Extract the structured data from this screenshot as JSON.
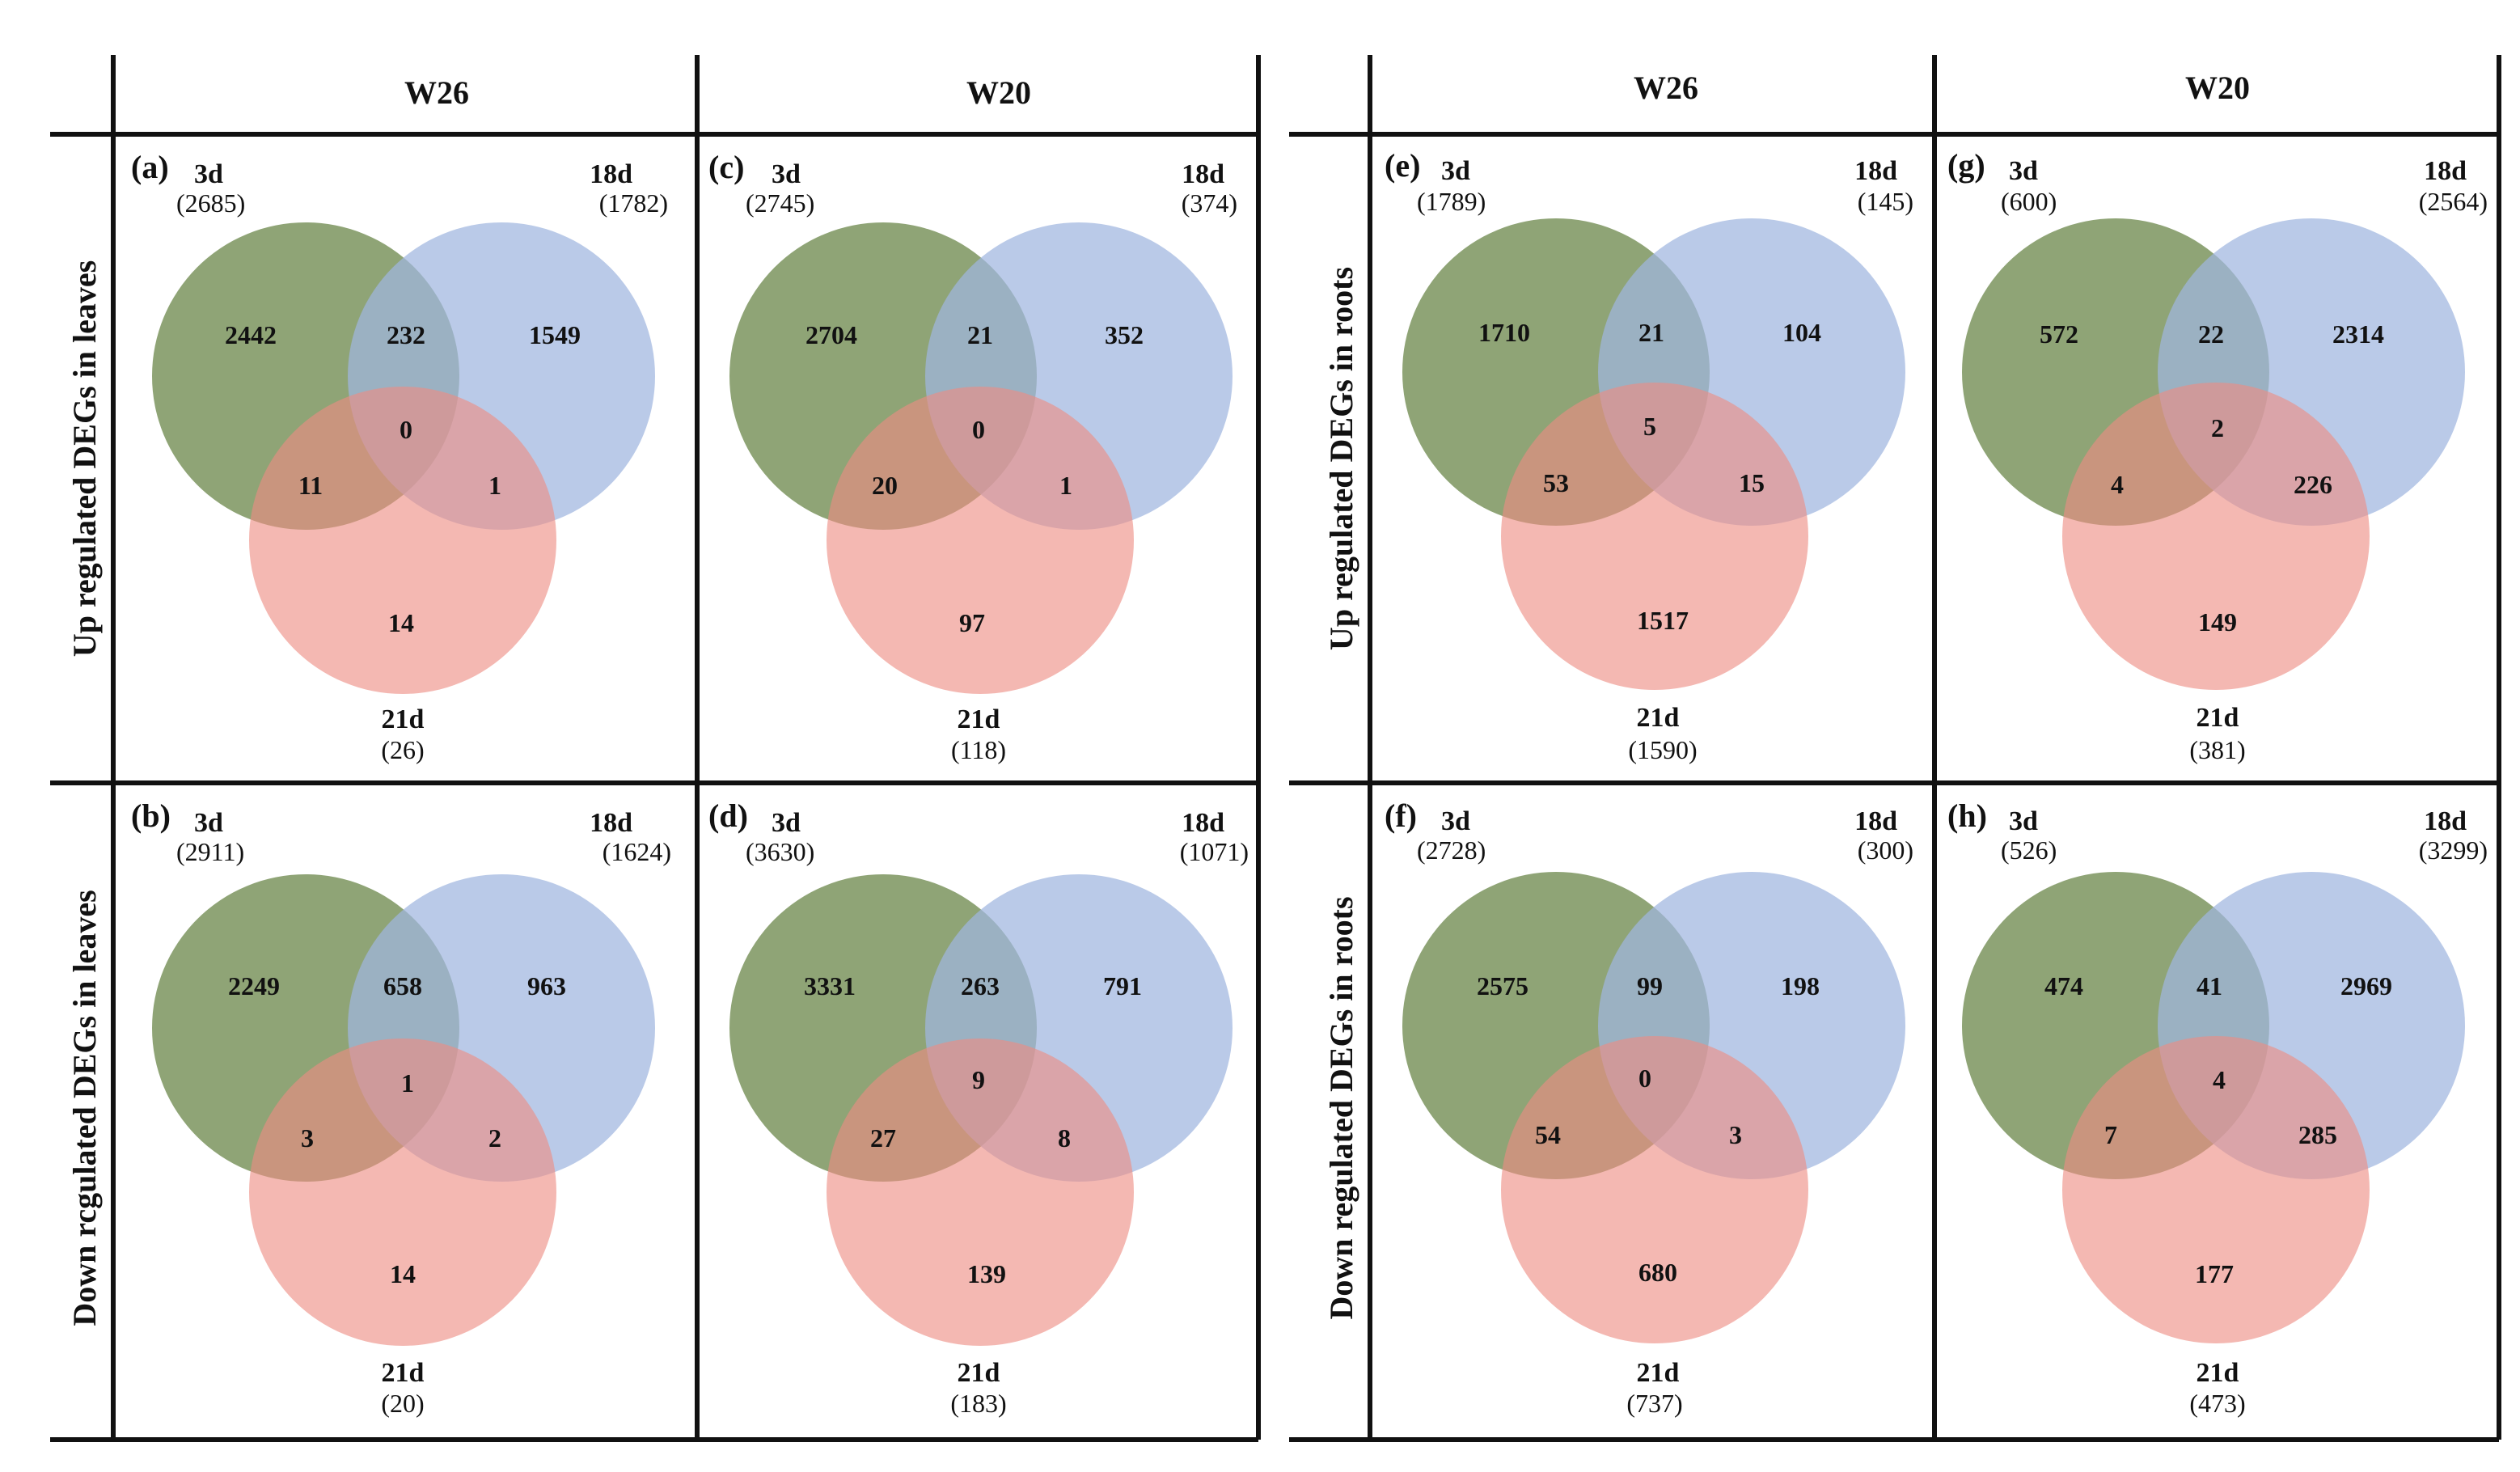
{
  "colors": {
    "set_3d": "#6f8a4f",
    "set_18d": "#9fb6df",
    "set_21d": "#ee8d82",
    "grid": "#111111"
  },
  "left_group": {
    "columns": [
      "W26",
      "W20"
    ],
    "rows": [
      "Up regulated DEGs in leaves",
      "Down rcgulated DEGs in leaves"
    ]
  },
  "right_group": {
    "columns": [
      "W26",
      "W20"
    ],
    "rows": [
      "Up regulated DEGs in roots",
      "Down regulated DEGs in roots"
    ]
  },
  "panels": [
    {
      "id": "a",
      "label": "(a)",
      "sets": {
        "a": {
          "name": "3d",
          "total": "(2685)"
        },
        "b": {
          "name": "18d",
          "total": "(1782)"
        },
        "c": {
          "name": "21d",
          "total": "(26)"
        }
      },
      "regions": {
        "a_only": "2442",
        "ab": "232",
        "b_only": "1549",
        "abc": "0",
        "ac": "11",
        "bc": "1",
        "c_only": "14"
      }
    },
    {
      "id": "b",
      "label": "(b)",
      "sets": {
        "a": {
          "name": "3d",
          "total": "(2911)"
        },
        "b": {
          "name": "18d",
          "total": "(1624)"
        },
        "c": {
          "name": "21d",
          "total": "(20)"
        }
      },
      "regions": {
        "a_only": "2249",
        "ab": "658",
        "b_only": "963",
        "abc": "1",
        "ac": "3",
        "bc": "2",
        "c_only": "14"
      }
    },
    {
      "id": "c",
      "label": "(c)",
      "sets": {
        "a": {
          "name": "3d",
          "total": "(2745)"
        },
        "b": {
          "name": "18d",
          "total": "(374)"
        },
        "c": {
          "name": "21d",
          "total": "(118)"
        }
      },
      "regions": {
        "a_only": "2704",
        "ab": "21",
        "b_only": "352",
        "abc": "0",
        "ac": "20",
        "bc": "1",
        "c_only": "97"
      }
    },
    {
      "id": "d",
      "label": "(d)",
      "sets": {
        "a": {
          "name": "3d",
          "total": "(3630)"
        },
        "b": {
          "name": "18d",
          "total": "(1071)"
        },
        "c": {
          "name": "21d",
          "total": "(183)"
        }
      },
      "regions": {
        "a_only": "3331",
        "ab": "263",
        "b_only": "791",
        "abc": "9",
        "ac": "27",
        "bc": "8",
        "c_only": "139"
      }
    },
    {
      "id": "e",
      "label": "(e)",
      "sets": {
        "a": {
          "name": "3d",
          "total": "(1789)"
        },
        "b": {
          "name": "18d",
          "total": "(145)"
        },
        "c": {
          "name": "21d",
          "total": "(1590)"
        }
      },
      "regions": {
        "a_only": "1710",
        "ab": "21",
        "b_only": "104",
        "abc": "5",
        "ac": "53",
        "bc": "15",
        "c_only": "1517"
      }
    },
    {
      "id": "f",
      "label": "(f)",
      "sets": {
        "a": {
          "name": "3d",
          "total": "(2728)"
        },
        "b": {
          "name": "18d",
          "total": "(300)"
        },
        "c": {
          "name": "21d",
          "total": "(737)"
        }
      },
      "regions": {
        "a_only": "2575",
        "ab": "99",
        "b_only": "198",
        "abc": "0",
        "ac": "54",
        "bc": "3",
        "c_only": "680"
      }
    },
    {
      "id": "g",
      "label": "(g)",
      "sets": {
        "a": {
          "name": "3d",
          "total": "(600)"
        },
        "b": {
          "name": "18d",
          "total": "(2564)"
        },
        "c": {
          "name": "21d",
          "total": "(381)"
        }
      },
      "regions": {
        "a_only": "572",
        "ab": "22",
        "b_only": "2314",
        "abc": "2",
        "ac": "4",
        "bc": "226",
        "c_only": "149"
      }
    },
    {
      "id": "h",
      "label": "(h)",
      "sets": {
        "a": {
          "name": "3d",
          "total": "(526)"
        },
        "b": {
          "name": "18d",
          "total": "(3299)"
        },
        "c": {
          "name": "21d",
          "total": "(473)"
        }
      },
      "regions": {
        "a_only": "474",
        "ab": "41",
        "b_only": "2969",
        "abc": "4",
        "ac": "7",
        "bc": "285",
        "c_only": "177"
      }
    }
  ]
}
